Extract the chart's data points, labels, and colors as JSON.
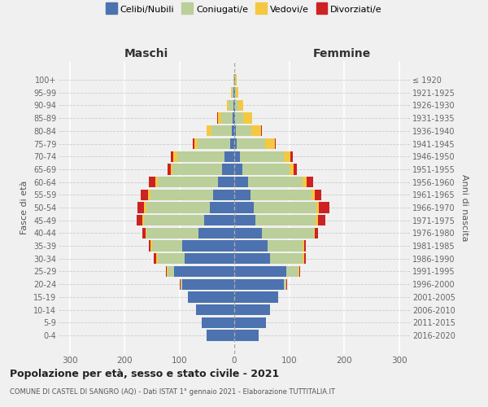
{
  "age_groups": [
    "0-4",
    "5-9",
    "10-14",
    "15-19",
    "20-24",
    "25-29",
    "30-34",
    "35-39",
    "40-44",
    "45-49",
    "50-54",
    "55-59",
    "60-64",
    "65-69",
    "70-74",
    "75-79",
    "80-84",
    "85-89",
    "90-94",
    "95-99",
    "100+"
  ],
  "birth_years": [
    "2016-2020",
    "2011-2015",
    "2006-2010",
    "2001-2005",
    "1996-2000",
    "1991-1995",
    "1986-1990",
    "1981-1985",
    "1976-1980",
    "1971-1975",
    "1966-1970",
    "1961-1965",
    "1956-1960",
    "1951-1955",
    "1946-1950",
    "1941-1945",
    "1936-1940",
    "1931-1935",
    "1926-1930",
    "1921-1925",
    "≤ 1920"
  ],
  "males": {
    "celibi": [
      50,
      60,
      70,
      85,
      95,
      110,
      90,
      95,
      65,
      55,
      45,
      38,
      30,
      22,
      18,
      7,
      4,
      3,
      2,
      1,
      0
    ],
    "coniugati": [
      0,
      0,
      0,
      0,
      3,
      12,
      50,
      55,
      95,
      110,
      115,
      115,
      110,
      90,
      85,
      60,
      38,
      20,
      8,
      3,
      1
    ],
    "vedovi": [
      0,
      0,
      0,
      0,
      0,
      1,
      2,
      2,
      2,
      3,
      4,
      4,
      4,
      4,
      8,
      6,
      8,
      7,
      4,
      2,
      1
    ],
    "divorziati": [
      0,
      0,
      0,
      0,
      1,
      2,
      4,
      4,
      5,
      10,
      12,
      14,
      12,
      6,
      4,
      2,
      1,
      1,
      0,
      0,
      0
    ]
  },
  "females": {
    "nubili": [
      45,
      58,
      65,
      80,
      90,
      95,
      65,
      60,
      50,
      38,
      35,
      30,
      25,
      15,
      10,
      4,
      3,
      2,
      2,
      1,
      1
    ],
    "coniugate": [
      0,
      0,
      0,
      0,
      5,
      22,
      60,
      65,
      95,
      110,
      115,
      110,
      100,
      85,
      80,
      52,
      28,
      14,
      6,
      2,
      1
    ],
    "vedove": [
      0,
      0,
      0,
      0,
      0,
      1,
      2,
      2,
      2,
      4,
      4,
      6,
      7,
      8,
      12,
      18,
      18,
      16,
      9,
      4,
      2
    ],
    "divorziate": [
      0,
      0,
      0,
      0,
      1,
      2,
      4,
      3,
      5,
      14,
      20,
      12,
      12,
      6,
      4,
      2,
      1,
      1,
      0,
      0,
      0
    ]
  },
  "colors": {
    "celibi_nubili": "#4C72B0",
    "coniugati": "#BBCF9A",
    "vedovi": "#F5C842",
    "divorziati": "#CC2222"
  },
  "xlim": 320,
  "title": "Popolazione per età, sesso e stato civile - 2021",
  "subtitle": "COMUNE DI CASTEL DI SANGRO (AQ) - Dati ISTAT 1° gennaio 2021 - Elaborazione TUTTITALIA.IT",
  "ylabel": "Fasce di età",
  "ylabel_right": "Anni di nascita",
  "xlabel_left": "Maschi",
  "xlabel_right": "Femmine",
  "bg_color": "#f0f0f0"
}
